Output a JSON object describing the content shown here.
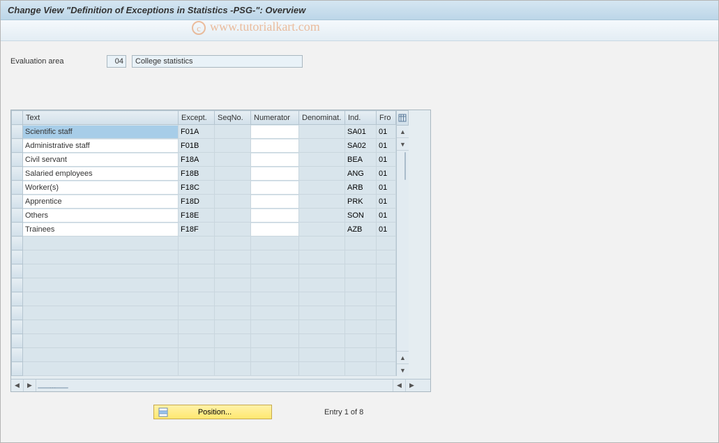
{
  "title": "Change View \"Definition of Exceptions in Statistics -PSG-\": Overview",
  "watermark": "www.tutorialkart.com",
  "form": {
    "label": "Evaluation area",
    "code": "04",
    "desc": "College statistics"
  },
  "table": {
    "columns": [
      "Text",
      "Except.",
      "SeqNo.",
      "Numerator",
      "Denominat.",
      "Ind.",
      "Fro"
    ],
    "total_rows_visible": 18,
    "rows": [
      {
        "text": "Scientific staff",
        "except": "F01A",
        "seqno": "",
        "numer": "",
        "denom": "",
        "ind": "SA01",
        "fro": "01",
        "selected": true
      },
      {
        "text": "Administrative staff",
        "except": "F01B",
        "seqno": "",
        "numer": "",
        "denom": "",
        "ind": "SA02",
        "fro": "01"
      },
      {
        "text": "Civil servant",
        "except": "F18A",
        "seqno": "",
        "numer": "",
        "denom": "",
        "ind": "BEA",
        "fro": "01"
      },
      {
        "text": "Salaried employees",
        "except": "F18B",
        "seqno": "",
        "numer": "",
        "denom": "",
        "ind": "ANG",
        "fro": "01"
      },
      {
        "text": "Worker(s)",
        "except": "F18C",
        "seqno": "",
        "numer": "",
        "denom": "",
        "ind": "ARB",
        "fro": "01"
      },
      {
        "text": "Apprentice",
        "except": "F18D",
        "seqno": "",
        "numer": "",
        "denom": "",
        "ind": "PRK",
        "fro": "01"
      },
      {
        "text": "Others",
        "except": "F18E",
        "seqno": "",
        "numer": "",
        "denom": "",
        "ind": "SON",
        "fro": "01"
      },
      {
        "text": "Trainees",
        "except": "F18F",
        "seqno": "",
        "numer": "",
        "denom": "",
        "ind": "AZB",
        "fro": "01"
      }
    ]
  },
  "colors": {
    "title_bg_top": "#d5e6f2",
    "title_bg_bottom": "#bcd6e8",
    "toolbar_bg_top": "#f5f9fc",
    "toolbar_bg_bottom": "#e3edf4",
    "readonly_cell_bg": "#d9e5ec",
    "selected_cell_bg": "#a7cde8",
    "position_btn_top": "#fff2a8",
    "position_btn_bottom": "#ffe86f"
  },
  "footer": {
    "position_label": "Position...",
    "entry_text": "Entry 1 of 8"
  }
}
